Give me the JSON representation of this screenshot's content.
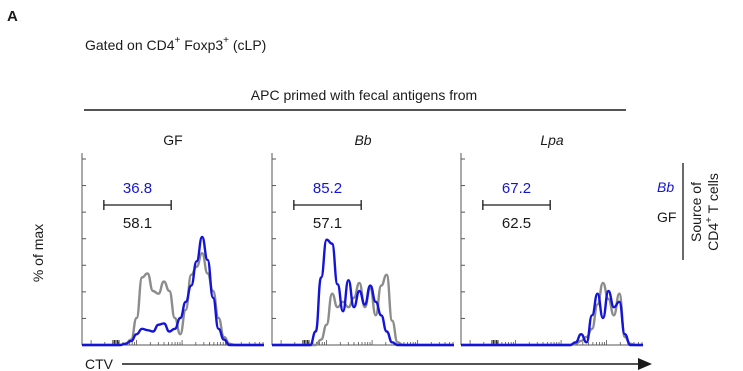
{
  "figure": {
    "panel_letter": "A",
    "gating_prefix": "Gated on CD4",
    "gating_sup1": "+",
    "gating_mid": " Foxp3",
    "gating_sup2": "+",
    "gating_suffix": "  (cLP)",
    "header": "APC primed with fecal antigens from",
    "y_axis_label": "% of max",
    "x_axis_label": "CTV",
    "legend_title_line1": "Source of",
    "legend_title_line2_prefix": "CD4",
    "legend_title_line2_sup": "+",
    "legend_title_line2_suffix": " T cells"
  },
  "colors": {
    "bb": "#1414d8",
    "gf": "#8c8c8c",
    "text": "#1a1a1a"
  },
  "chart_data": [
    {
      "type": "line",
      "title": "GF",
      "title_italic": false,
      "gate_label_bb": "36.8",
      "gate_label_gf": "58.1",
      "x": [
        0,
        3,
        6,
        9,
        12,
        15,
        18,
        21,
        24,
        27,
        30,
        33,
        36,
        39,
        42,
        45,
        48,
        51,
        54,
        57,
        60,
        63,
        66,
        69,
        72,
        75,
        78,
        81,
        84,
        87,
        90,
        93,
        96,
        99,
        100
      ],
      "series": [
        {
          "name": "Bb",
          "values": [
            0,
            0,
            0,
            0,
            0,
            0,
            0,
            0,
            1,
            3,
            8,
            12,
            11,
            10,
            15,
            16,
            10,
            12,
            20,
            32,
            44,
            62,
            80,
            63,
            35,
            12,
            4,
            0,
            0,
            0,
            0,
            0,
            0,
            0,
            0
          ]
        },
        {
          "name": "GF",
          "values": [
            0,
            0,
            0,
            0,
            0,
            0,
            0,
            0,
            1,
            4,
            20,
            50,
            53,
            40,
            38,
            47,
            40,
            20,
            8,
            26,
            52,
            58,
            68,
            53,
            40,
            20,
            6,
            1,
            0,
            0,
            0,
            0,
            0,
            0,
            0
          ]
        }
      ]
    },
    {
      "type": "line",
      "title": "Bb",
      "title_italic": true,
      "gate_label_bb": "85.2",
      "gate_label_gf": "57.1",
      "x": [
        0,
        3,
        6,
        9,
        12,
        15,
        18,
        21,
        24,
        27,
        30,
        33,
        36,
        39,
        42,
        45,
        48,
        51,
        54,
        57,
        60,
        63,
        66,
        69,
        72,
        75,
        78,
        81,
        84,
        87,
        90,
        93,
        96,
        99,
        100
      ],
      "series": [
        {
          "name": "Bb",
          "values": [
            0,
            0,
            0,
            0,
            0,
            0,
            0,
            0,
            10,
            50,
            78,
            75,
            45,
            25,
            48,
            28,
            40,
            30,
            44,
            32,
            22,
            10,
            2,
            0,
            0,
            0,
            0,
            0,
            0,
            0,
            0,
            0,
            0,
            0,
            0
          ]
        },
        {
          "name": "GF",
          "values": [
            0,
            0,
            0,
            0,
            0,
            0,
            0,
            0,
            0,
            4,
            15,
            38,
            28,
            32,
            28,
            35,
            46,
            28,
            42,
            22,
            44,
            52,
            18,
            2,
            0,
            0,
            0,
            0,
            0,
            0,
            0,
            0,
            0,
            0,
            0
          ]
        }
      ]
    },
    {
      "type": "line",
      "title": "Lpa",
      "title_italic": true,
      "gate_label_bb": "67.2",
      "gate_label_gf": "62.5",
      "x": [
        0,
        3,
        6,
        9,
        12,
        15,
        18,
        21,
        24,
        27,
        30,
        33,
        36,
        39,
        42,
        45,
        48,
        51,
        54,
        57,
        60,
        63,
        66,
        69,
        72,
        75,
        78,
        81,
        84,
        87,
        90,
        93,
        96,
        99,
        100
      ],
      "series": [
        {
          "name": "Bb",
          "values": [
            0,
            0,
            0,
            0,
            0,
            0,
            0,
            0,
            0,
            0,
            0,
            0,
            0,
            0,
            0,
            0,
            0,
            0,
            0,
            0,
            0,
            2,
            8,
            2,
            22,
            38,
            20,
            40,
            28,
            32,
            8,
            0,
            0,
            0,
            0
          ]
        },
        {
          "name": "GF",
          "values": [
            0,
            0,
            0,
            0,
            0,
            0,
            0,
            0,
            0,
            0,
            0,
            0,
            0,
            0,
            0,
            0,
            0,
            0,
            0,
            0,
            0,
            1,
            3,
            6,
            12,
            30,
            46,
            34,
            22,
            38,
            6,
            1,
            0,
            0,
            0
          ]
        }
      ]
    }
  ],
  "legend": [
    {
      "label": "Bb",
      "italic": true,
      "color": "#1414d8"
    },
    {
      "label": "GF",
      "italic": false,
      "color": "#1a1a1a"
    }
  ]
}
